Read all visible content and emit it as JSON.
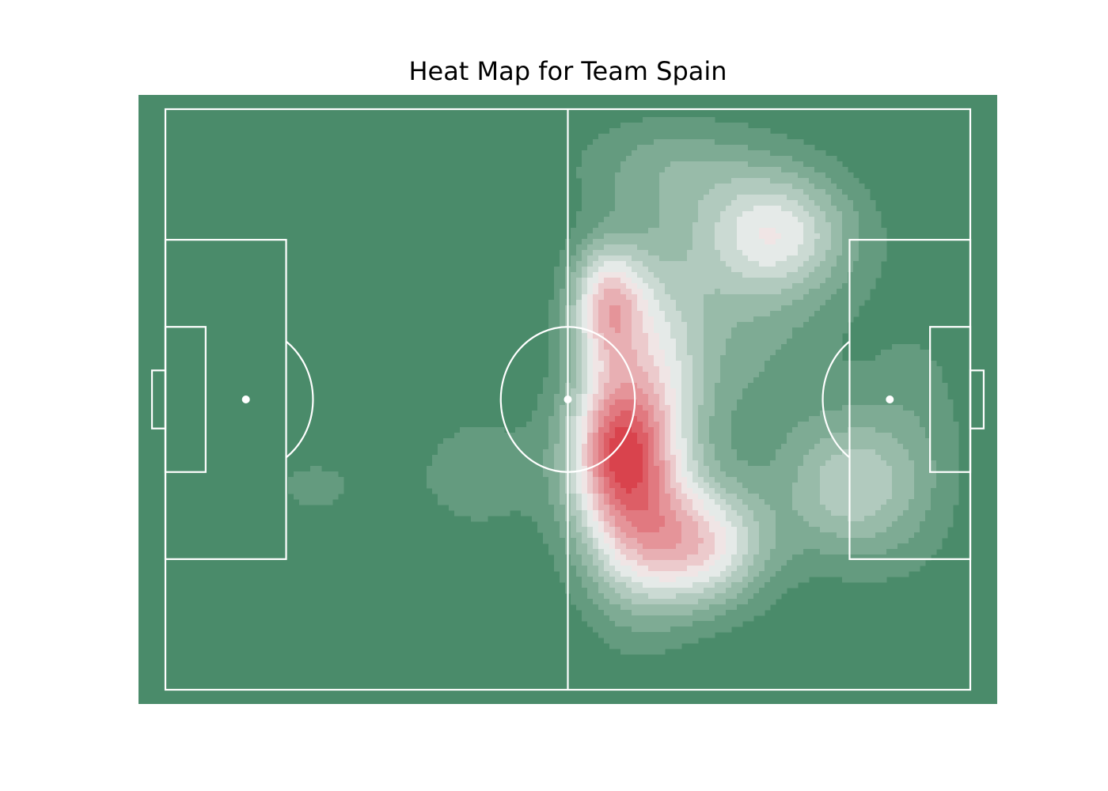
{
  "chart_data": {
    "type": "heatmap",
    "title": "Heat Map for Team Spain",
    "xlabel": "",
    "ylabel": "",
    "xlim": [
      0,
      120
    ],
    "ylim": [
      0,
      80
    ],
    "colormap": {
      "low": "#4a8b6a",
      "mid": "#f2f2f2",
      "high": "#d9434d"
    },
    "levels": 14,
    "pitch_line_color": "#ffffff",
    "hotspots": [
      {
        "x": 67,
        "y": 46,
        "weight": 1.0,
        "sx": 5,
        "sy": 8
      },
      {
        "x": 66,
        "y": 27,
        "weight": 0.9,
        "sx": 4,
        "sy": 6
      },
      {
        "x": 80,
        "y": 60,
        "weight": 0.8,
        "sx": 7,
        "sy": 6
      },
      {
        "x": 70,
        "y": 56,
        "weight": 0.6,
        "sx": 6,
        "sy": 10
      },
      {
        "x": 74,
        "y": 36,
        "weight": 0.45,
        "sx": 5,
        "sy": 12
      },
      {
        "x": 91,
        "y": 17,
        "weight": 0.65,
        "sx": 8,
        "sy": 6
      },
      {
        "x": 102,
        "y": 52,
        "weight": 0.5,
        "sx": 7,
        "sy": 7
      },
      {
        "x": 85,
        "y": 30,
        "weight": 0.25,
        "sx": 10,
        "sy": 12
      },
      {
        "x": 47,
        "y": 50,
        "weight": 0.15,
        "sx": 8,
        "sy": 8
      },
      {
        "x": 22,
        "y": 52,
        "weight": 0.12,
        "sx": 9,
        "sy": 6
      },
      {
        "x": 75,
        "y": 8,
        "weight": 0.25,
        "sx": 10,
        "sy": 5
      },
      {
        "x": 112,
        "y": 45,
        "weight": 0.15,
        "sx": 6,
        "sy": 14
      }
    ]
  }
}
